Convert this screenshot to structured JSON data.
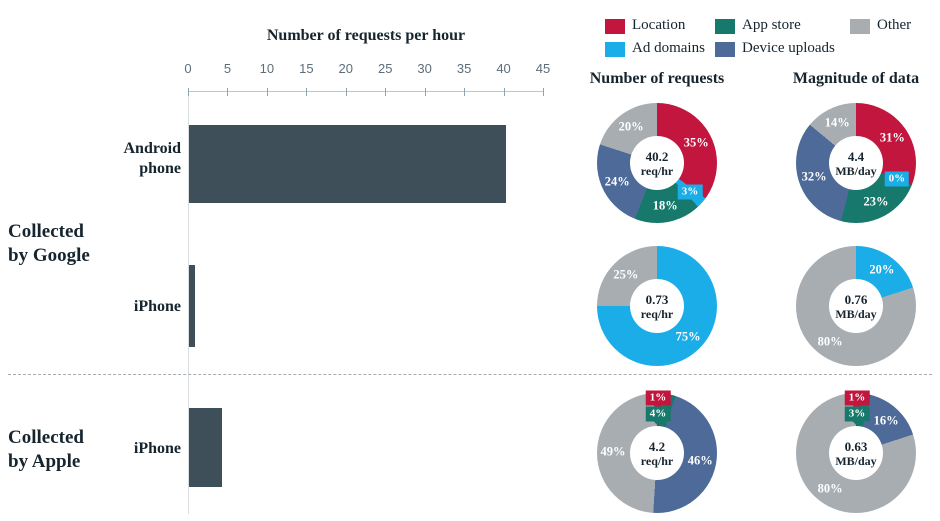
{
  "colors": {
    "location": "#c3163f",
    "ad_domains": "#1aade8",
    "app_store": "#17796b",
    "device_uploads": "#4d6a99",
    "other": "#a8adb2",
    "bar": "#3e4f5a"
  },
  "legend": {
    "items": [
      {
        "key": "location",
        "label": "Location"
      },
      {
        "key": "app_store",
        "label": "App store"
      },
      {
        "key": "other",
        "label": "Other"
      },
      {
        "key": "ad_domains",
        "label": "Ad domains"
      },
      {
        "key": "device_uploads",
        "label": "Device uploads"
      }
    ]
  },
  "column_headers": {
    "requests": "Number of requests",
    "magnitude": "Magnitude of data"
  },
  "group_labels": {
    "google": "Collected\nby Google",
    "apple": "Collected\nby Apple"
  },
  "row_labels": {
    "android": "Android\nphone",
    "iphone_google": "iPhone",
    "iphone_apple": "iPhone"
  },
  "chart_data": [
    {
      "type": "bar",
      "orientation": "horizontal",
      "title": "Number of requests per hour",
      "categories": [
        "Android phone (Collected by Google)",
        "iPhone (Collected by Google)",
        "iPhone (Collected by Apple)"
      ],
      "values": [
        40.2,
        0.73,
        4.2
      ],
      "xlabel": "Number of requests per hour",
      "xlim": [
        0,
        45
      ],
      "xticks": [
        0,
        5,
        10,
        15,
        20,
        25,
        30,
        35,
        40,
        45
      ],
      "grid": false,
      "bar_color": "#3e4f5a"
    },
    {
      "type": "pie",
      "id": "android-requests",
      "group": "Collected by Google",
      "device": "Android phone",
      "metric": "Number of requests",
      "center_value": "40.2",
      "center_unit": "req/hr",
      "slices": [
        {
          "key": "location",
          "label": "Location",
          "pct": 35
        },
        {
          "key": "ad_domains",
          "label": "Ad domains",
          "pct": 3
        },
        {
          "key": "app_store",
          "label": "App store",
          "pct": 18
        },
        {
          "key": "device_uploads",
          "label": "Device uploads",
          "pct": 24
        },
        {
          "key": "other",
          "label": "Other",
          "pct": 20
        }
      ]
    },
    {
      "type": "pie",
      "id": "android-magnitude",
      "group": "Collected by Google",
      "device": "Android phone",
      "metric": "Magnitude of data",
      "center_value": "4.4",
      "center_unit": "MB/day",
      "slices": [
        {
          "key": "location",
          "label": "Location",
          "pct": 31
        },
        {
          "key": "ad_domains",
          "label": "Ad domains",
          "pct": 0
        },
        {
          "key": "app_store",
          "label": "App store",
          "pct": 23
        },
        {
          "key": "device_uploads",
          "label": "Device uploads",
          "pct": 32
        },
        {
          "key": "other",
          "label": "Other",
          "pct": 14
        }
      ]
    },
    {
      "type": "pie",
      "id": "iphone-google-requests",
      "group": "Collected by Google",
      "device": "iPhone",
      "metric": "Number of requests",
      "center_value": "0.73",
      "center_unit": "req/hr",
      "slices": [
        {
          "key": "ad_domains",
          "label": "Ad domains",
          "pct": 75
        },
        {
          "key": "other",
          "label": "Other",
          "pct": 25
        }
      ]
    },
    {
      "type": "pie",
      "id": "iphone-google-magnitude",
      "group": "Collected by Google",
      "device": "iPhone",
      "metric": "Magnitude of data",
      "center_value": "0.76",
      "center_unit": "MB/day",
      "slices": [
        {
          "key": "ad_domains",
          "label": "Ad domains",
          "pct": 20
        },
        {
          "key": "other",
          "label": "Other",
          "pct": 80
        }
      ]
    },
    {
      "type": "pie",
      "id": "iphone-apple-requests",
      "group": "Collected by Apple",
      "device": "iPhone",
      "metric": "Number of requests",
      "center_value": "4.2",
      "center_unit": "req/hr",
      "slices": [
        {
          "key": "location",
          "label": "Location",
          "pct": 1
        },
        {
          "key": "app_store",
          "label": "App store",
          "pct": 4
        },
        {
          "key": "device_uploads",
          "label": "Device uploads",
          "pct": 46
        },
        {
          "key": "other",
          "label": "Other",
          "pct": 49
        }
      ]
    },
    {
      "type": "pie",
      "id": "iphone-apple-magnitude",
      "group": "Collected by Apple",
      "device": "iPhone",
      "metric": "Magnitude of data",
      "center_value": "0.63",
      "center_unit": "MB/day",
      "slices": [
        {
          "key": "location",
          "label": "Location",
          "pct": 1
        },
        {
          "key": "app_store",
          "label": "App store",
          "pct": 3
        },
        {
          "key": "device_uploads",
          "label": "Device uploads",
          "pct": 16
        },
        {
          "key": "other",
          "label": "Other",
          "pct": 80
        }
      ]
    }
  ]
}
